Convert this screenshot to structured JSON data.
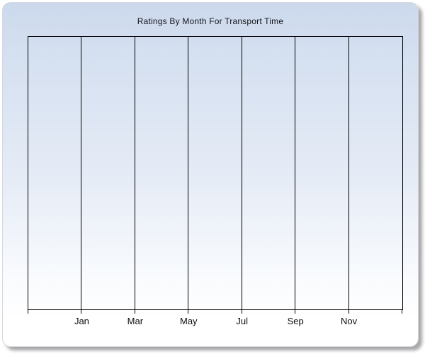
{
  "panel": {
    "background_gradient_top": "#ccd9ec",
    "background_gradient_mid": "#e6ecf6",
    "background_gradient_bottom": "#ffffff",
    "border_color": "#d4d8e0",
    "shadow": "gray drop shadow bottom-right"
  },
  "chart_data": {
    "type": "line",
    "title": "Ratings By Month For Transport Time",
    "x_tick_labels": [
      "Jan",
      "Mar",
      "May",
      "Jul",
      "Sep",
      "Nov"
    ],
    "x_axis_intervals": 7,
    "series": [],
    "xlabel": "",
    "ylabel": "",
    "y_tick_labels": [],
    "grid": "vertical gridlines only; labels centered on gridlines; first and last plot-edge boundaries unlabeled; plot area empty (no data plotted)",
    "legend": "none",
    "axis_color": "#000000",
    "title_color": "#15151a",
    "tick_label_color": "#0c0c12"
  }
}
